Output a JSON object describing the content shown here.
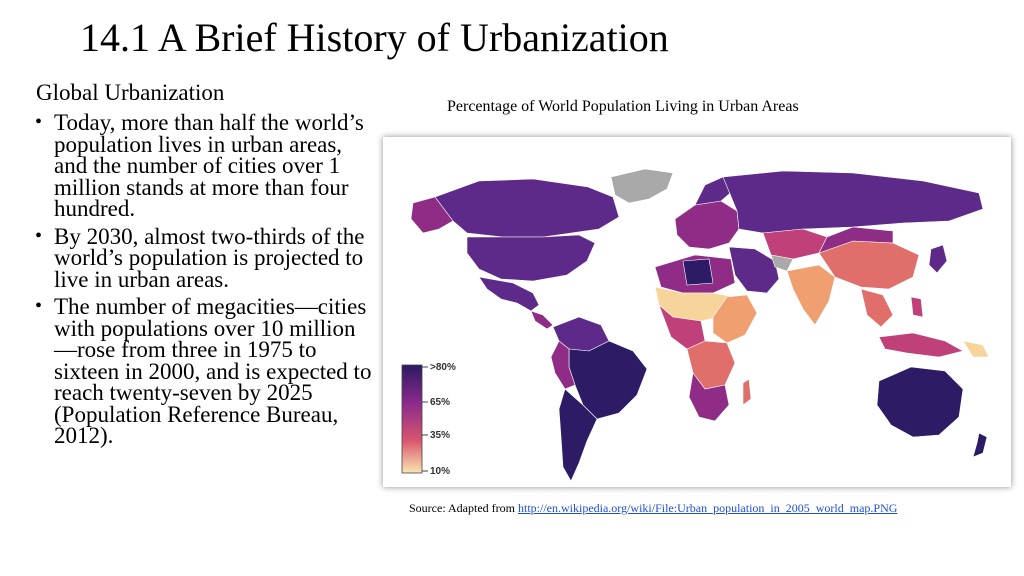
{
  "slide": {
    "title": "14.1 A Brief History of Urbanization",
    "section_heading": "Global Urbanization",
    "bullet_glyph": "•",
    "bullets": [
      "Today, more than half the world’s population lives in urban areas, and the number of cities over 1 million stands at more than four hundred.",
      "By 2030, almost two-thirds of the world’s population is projected to live in urban areas.",
      "The number of megacities—cities with populations over 10 million—rose from three in 1975 to sixteen in 2000, and is expected to reach twenty-seven by 2025 (Population Reference Bureau, 2012)."
    ]
  },
  "map": {
    "caption": "Percentage of World Population Living in Urban Areas",
    "legend": {
      "labels": [
        ">80%",
        "65%",
        "35%",
        "10%"
      ],
      "colors": [
        "#2b1a63",
        "#8a2a8c",
        "#d9566e",
        "#fbe6b0"
      ]
    },
    "colors": {
      "very_high": "#2e1b66",
      "high": "#5d2a8a",
      "mid_high": "#8f2c86",
      "mid": "#c0407a",
      "mid_low": "#e06e6a",
      "low": "#f0a070",
      "very_low": "#f7d49a",
      "no_data": "#a9a9a9"
    }
  },
  "source": {
    "prefix": "Source: Adapted from ",
    "link_text": "http://en.wikipedia.org/wiki/File:Urban_population_in_2005_world_map.PNG"
  }
}
